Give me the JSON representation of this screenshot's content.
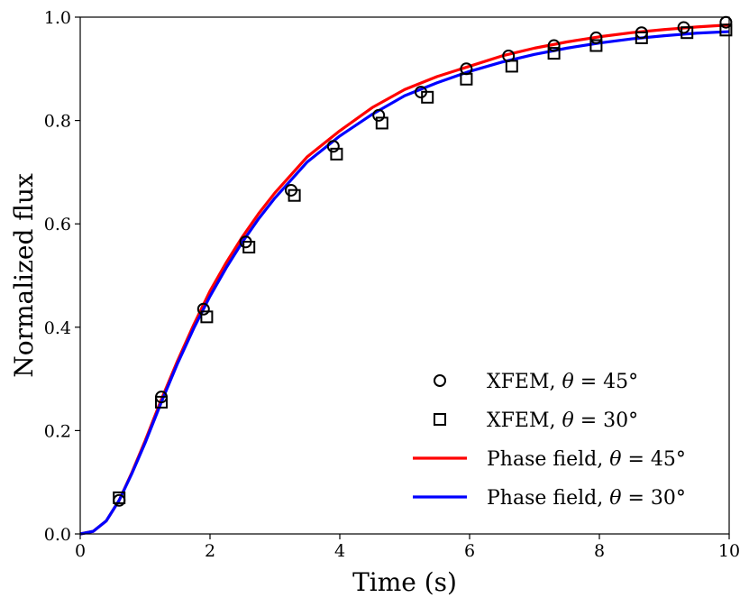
{
  "chart_data": {
    "type": "line",
    "title": "",
    "xlabel": "Time (s)",
    "ylabel": "Normalized flux",
    "xlim": [
      0,
      10
    ],
    "ylim": [
      0,
      1.0
    ],
    "xticks": [
      0,
      2,
      4,
      6,
      8,
      10
    ],
    "xtick_labels": [
      "0",
      "2",
      "4",
      "6",
      "8",
      "10"
    ],
    "yticks": [
      0.0,
      0.2,
      0.4,
      0.6,
      0.8,
      1.0
    ],
    "ytick_labels": [
      "0.0",
      "0.2",
      "0.4",
      "0.6",
      "0.8",
      "1.0"
    ],
    "grid": false,
    "legend_position": "lower-right",
    "series": [
      {
        "name": "XFEM, θ = 45°",
        "label_prefix": "XFEM, ",
        "label_var": "θ",
        "label_suffix": " = 45°",
        "kind": "marker",
        "marker": "circle",
        "color": "#000000",
        "x": [
          0.6,
          1.25,
          1.9,
          2.55,
          3.25,
          3.9,
          4.6,
          5.25,
          5.95,
          6.6,
          7.3,
          7.95,
          8.65,
          9.3,
          9.95
        ],
        "y": [
          0.065,
          0.265,
          0.435,
          0.565,
          0.665,
          0.75,
          0.81,
          0.855,
          0.9,
          0.925,
          0.945,
          0.96,
          0.97,
          0.98,
          0.99
        ]
      },
      {
        "name": "XFEM, θ = 30°",
        "label_prefix": "XFEM, ",
        "label_var": "θ",
        "label_suffix": " = 30°",
        "kind": "marker",
        "marker": "square",
        "color": "#000000",
        "x": [
          0.6,
          1.25,
          1.95,
          2.6,
          3.3,
          3.95,
          4.65,
          5.35,
          5.95,
          6.65,
          7.3,
          7.95,
          8.65,
          9.35,
          9.95
        ],
        "y": [
          0.07,
          0.255,
          0.42,
          0.555,
          0.655,
          0.735,
          0.795,
          0.845,
          0.88,
          0.905,
          0.93,
          0.945,
          0.96,
          0.97,
          0.975
        ]
      },
      {
        "name": "Phase field, θ = 45°",
        "label_prefix": "Phase field, ",
        "label_var": "θ",
        "label_suffix": " = 45°",
        "kind": "line",
        "color": "#ff0000",
        "x": [
          0,
          0.2,
          0.4,
          0.6,
          0.8,
          1.0,
          1.25,
          1.5,
          1.75,
          2.0,
          2.25,
          2.5,
          2.75,
          3.0,
          3.5,
          4.0,
          4.5,
          5.0,
          5.5,
          6.0,
          6.5,
          7.0,
          7.5,
          8.0,
          8.5,
          9.0,
          9.5,
          10.0
        ],
        "y": [
          0.0,
          0.005,
          0.025,
          0.065,
          0.12,
          0.18,
          0.26,
          0.335,
          0.405,
          0.47,
          0.525,
          0.575,
          0.62,
          0.66,
          0.73,
          0.78,
          0.825,
          0.86,
          0.885,
          0.905,
          0.925,
          0.94,
          0.952,
          0.962,
          0.97,
          0.976,
          0.981,
          0.985
        ]
      },
      {
        "name": "Phase field, θ = 30°",
        "label_prefix": "Phase field, ",
        "label_var": "θ",
        "label_suffix": " = 30°",
        "kind": "line",
        "color": "#0000ff",
        "x": [
          0,
          0.2,
          0.4,
          0.6,
          0.8,
          1.0,
          1.25,
          1.5,
          1.75,
          2.0,
          2.25,
          2.5,
          2.75,
          3.0,
          3.5,
          4.0,
          4.5,
          5.0,
          5.5,
          6.0,
          6.5,
          7.0,
          7.5,
          8.0,
          8.5,
          9.0,
          9.5,
          10.0
        ],
        "y": [
          0.0,
          0.005,
          0.025,
          0.065,
          0.118,
          0.176,
          0.255,
          0.33,
          0.398,
          0.46,
          0.515,
          0.565,
          0.61,
          0.65,
          0.72,
          0.77,
          0.812,
          0.848,
          0.873,
          0.895,
          0.913,
          0.928,
          0.94,
          0.95,
          0.958,
          0.964,
          0.969,
          0.972
        ]
      }
    ]
  }
}
